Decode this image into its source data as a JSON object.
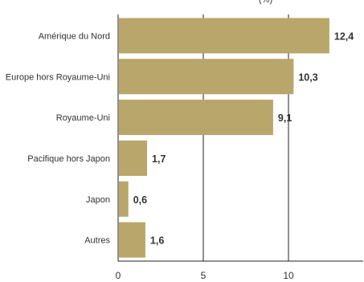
{
  "chart_data": {
    "type": "bar",
    "orientation": "horizontal",
    "title_fragment": "(%)",
    "categories": [
      "Amérique du Nord",
      "Europe hors Royaume-Uni",
      "Royaume-Uni",
      "Pacifique hors Japon",
      "Japon",
      "Autres"
    ],
    "values": [
      12.4,
      10.3,
      9.1,
      1.7,
      0.6,
      1.6
    ],
    "value_labels": [
      "12,4",
      "10,3",
      "9,1",
      "1,7",
      "0,6",
      "1,6"
    ],
    "xticks": [
      0,
      5,
      10
    ],
    "xtick_labels": [
      "0",
      "5",
      "10"
    ],
    "xlim": [
      0,
      14
    ],
    "grid": "vertical lines at ticks",
    "colors": {
      "bar": "#b8a66a",
      "axis": "#222222",
      "text": "#333333"
    }
  }
}
